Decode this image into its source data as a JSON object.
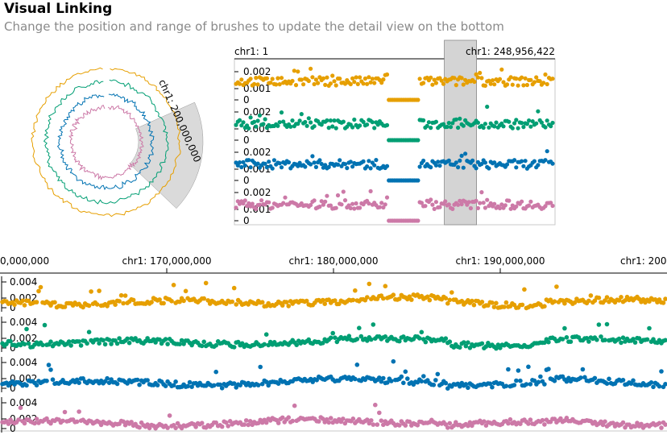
{
  "header": {
    "title": "Visual Linking",
    "subtitle": "Change the position and range of brushes to update the detail view on the bottom"
  },
  "colors": [
    "#E69F00",
    "#009E73",
    "#0072B2",
    "#CC79A7"
  ],
  "brush_color": "#d4d4d4",
  "chart_data": [
    {
      "type": "area",
      "layout": "circular",
      "brush_label": "chr1: 200,000,000",
      "series_count": 4
    },
    {
      "type": "scatter",
      "x_domain_labels": [
        "chr1: 1",
        "chr1: 248,956,422"
      ],
      "x_range": [
        1,
        248956422
      ],
      "brush_range": [
        163000000,
        188000000
      ],
      "tracks": [
        {
          "color": "#E69F00",
          "yticks": [
            "0.002",
            "0.001",
            "0"
          ],
          "ylim": [
            0,
            0.0025
          ]
        },
        {
          "color": "#009E73",
          "yticks": [
            "0.002",
            "0.001",
            "0"
          ],
          "ylim": [
            0,
            0.0025
          ]
        },
        {
          "color": "#0072B2",
          "yticks": [
            "0.002",
            "0.001",
            "0"
          ],
          "ylim": [
            0,
            0.0025
          ]
        },
        {
          "color": "#CC79A7",
          "yticks": [
            "0.002",
            "0.001",
            "0"
          ],
          "ylim": [
            0,
            0.0025
          ]
        }
      ]
    },
    {
      "type": "scatter",
      "x_ticks": [
        "0,000,000",
        "chr1: 170,000,000",
        "chr1: 180,000,000",
        "chr1: 190,000,000",
        "chr1: 200"
      ],
      "tracks": [
        {
          "color": "#E69F00",
          "yticks": [
            "0.004",
            "0.002",
            "0"
          ],
          "ylim": [
            0,
            0.005
          ]
        },
        {
          "color": "#009E73",
          "yticks": [
            "0.004",
            "0.002",
            "0"
          ],
          "ylim": [
            0,
            0.005
          ]
        },
        {
          "color": "#0072B2",
          "yticks": [
            "0.004",
            "0.002",
            "0"
          ],
          "ylim": [
            0,
            0.005
          ]
        },
        {
          "color": "#CC79A7",
          "yticks": [
            "0.004",
            "0.002",
            "0"
          ],
          "ylim": [
            0,
            0.005
          ]
        }
      ]
    }
  ]
}
